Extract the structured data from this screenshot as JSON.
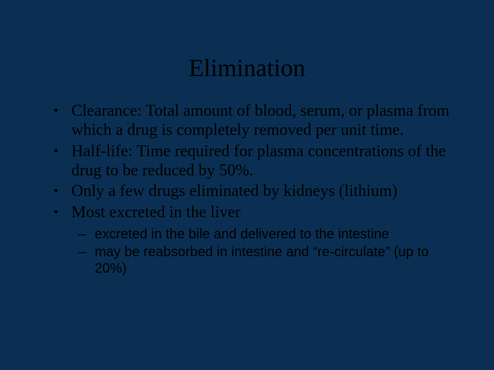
{
  "slide": {
    "background_color": "#0a2f52",
    "text_color": "#000000",
    "title": "Elimination",
    "title_fontsize": 36,
    "body_font": "Times New Roman",
    "body_fontsize": 24,
    "sub_font": "Arial",
    "sub_fontsize": 20,
    "bullets": [
      "Clearance: Total amount of blood, serum, or plasma from which a drug is completely removed per unit time.",
      "Half-life:  Time required for plasma concentrations of the drug to be reduced by 50%.",
      "Only a few drugs eliminated by kidneys (lithium)",
      "Most excreted in the liver"
    ],
    "sub_bullets": [
      "excreted in the bile and delivered to the intestine",
      "may be reabsorbed in intestine and “re-circulate” (up to 20%)"
    ]
  }
}
